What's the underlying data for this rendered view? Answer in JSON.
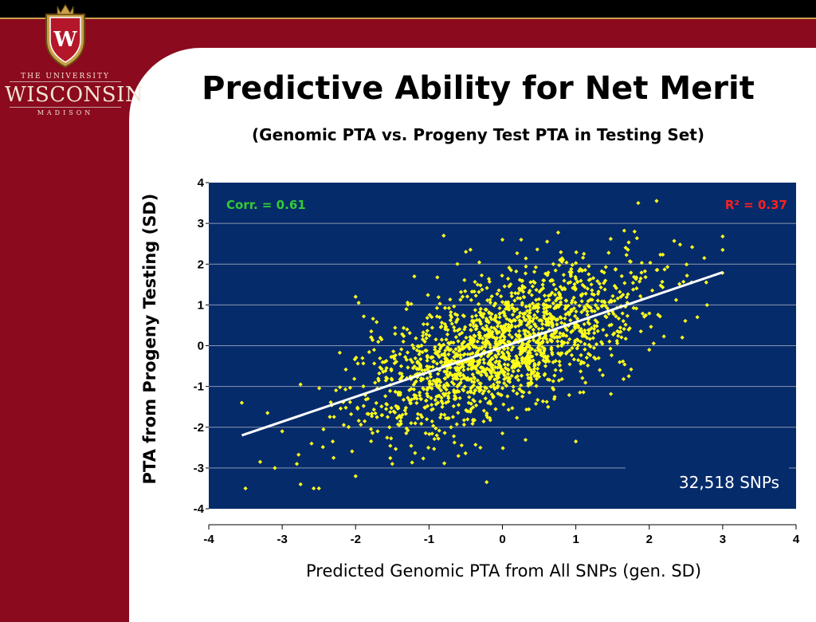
{
  "branding": {
    "line1": "THE UNIVERSITY",
    "line2": "WISCONSIN",
    "line3": "MADISON",
    "crest_letter": "W"
  },
  "slide": {
    "title": "Predictive Ability for Net Merit",
    "subtitle": "(Genomic PTA vs. Progeny Test PTA in Testing Set)"
  },
  "colors": {
    "background": "#8b0a1e",
    "plot_area": "#062b6b",
    "points": "#ffff1a",
    "trendline": "#ffffff",
    "corr_text": "#33cc33",
    "r2_text": "#ff2020"
  },
  "chart_data": {
    "type": "scatter",
    "title": "Predictive Ability for Net Merit",
    "subtitle": "(Genomic PTA vs. Progeny Test PTA in Testing Set)",
    "xlabel": "Predicted Genomic PTA from All SNPs (gen. SD)",
    "ylabel": "PTA from Progeny Testing (SD)",
    "xlim": [
      -4,
      4
    ],
    "ylim": [
      -4,
      4
    ],
    "xticks": [
      "-4",
      "-3",
      "-2",
      "-1",
      "0",
      "1",
      "2",
      "3",
      "4"
    ],
    "yticks": [
      "4",
      "3",
      "2",
      "1",
      "0",
      "-1",
      "-2",
      "-3",
      "-4"
    ],
    "grid": "horizontal",
    "annotations": {
      "corr": "Corr. = 0.61",
      "r2": "R² = 0.37",
      "snps": "32,518 SNPs"
    },
    "trendline": {
      "x": [
        -3.55,
        3.0
      ],
      "y": [
        -2.2,
        1.8
      ]
    },
    "correlation": 0.61,
    "r_squared": 0.37,
    "sample_points_approx": [
      [
        -3.55,
        -1.4
      ],
      [
        -3.2,
        -1.65
      ],
      [
        -3.0,
        -2.1
      ],
      [
        -3.1,
        -3.0
      ],
      [
        -3.3,
        -2.85
      ],
      [
        -2.8,
        -2.9
      ],
      [
        -2.75,
        -3.4
      ],
      [
        -2.5,
        -3.5
      ],
      [
        -2.6,
        -2.4
      ],
      [
        -2.3,
        -2.75
      ],
      [
        -2.75,
        -0.95
      ],
      [
        -2.0,
        -3.2
      ],
      [
        -2.0,
        1.2
      ],
      [
        -1.7,
        -2.1
      ],
      [
        -1.5,
        -2.9
      ],
      [
        -1.35,
        0.1
      ],
      [
        -1.2,
        1.7
      ],
      [
        -0.8,
        2.7
      ],
      [
        0.0,
        2.6
      ],
      [
        2.1,
        3.55
      ],
      [
        1.85,
        3.5
      ],
      [
        1.8,
        2.8
      ],
      [
        3.0,
        2.35
      ],
      [
        2.75,
        2.15
      ],
      [
        1.0,
        -2.35
      ],
      [
        0.0,
        -2.15
      ],
      [
        -0.3,
        -2.5
      ],
      [
        -0.7,
        -2.0
      ],
      [
        2.0,
        -0.1
      ],
      [
        2.45,
        0.2
      ]
    ],
    "point_cloud": {
      "n": 1800,
      "x_mean": 0.0,
      "x_sd": 0.95,
      "corr": 0.61,
      "seed": 7
    }
  }
}
